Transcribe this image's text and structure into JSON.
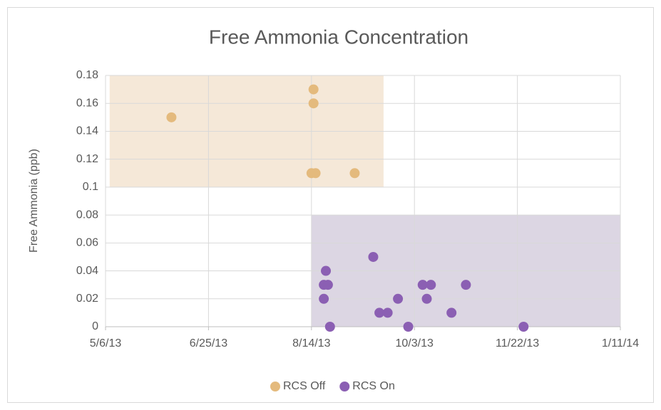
{
  "chart_data": {
    "type": "scatter",
    "title": "Free Ammonia Concentration",
    "y_label": "Free Ammonia (ppb)",
    "xlim": [
      "5/6/13",
      "1/11/14"
    ],
    "xticks": [
      "5/6/13",
      "6/25/13",
      "8/14/13",
      "10/3/13",
      "11/22/13",
      "1/11/14"
    ],
    "ylim": [
      0,
      0.18
    ],
    "yticks": [
      0,
      0.02,
      0.04,
      0.06,
      0.08,
      0.1,
      0.12,
      0.14,
      0.16,
      0.18
    ],
    "grid": true,
    "regions": [
      {
        "x": [
          "5/8/13",
          "9/18/13"
        ],
        "y": [
          0.1,
          0.18
        ],
        "color": "#f5e8d8"
      },
      {
        "x": [
          "8/14/13",
          "1/11/14"
        ],
        "y": [
          0,
          0.08
        ],
        "color": "#dcd6e3"
      }
    ],
    "series": [
      {
        "name": "RCS Off",
        "color": "#e4ba7d",
        "x": [
          "6/7/13",
          "8/15/13",
          "8/15/13",
          "8/14/13",
          "8/16/13",
          "9/4/13"
        ],
        "values": [
          0.15,
          0.17,
          0.16,
          0.11,
          0.11,
          0.11
        ]
      },
      {
        "name": "RCS On",
        "color": "#8b5fb3",
        "x": [
          "8/21/13",
          "8/20/13",
          "8/22/13",
          "8/20/13",
          "8/23/13",
          "9/13/13",
          "9/16/13",
          "9/20/13",
          "9/25/13",
          "9/30/13",
          "10/7/13",
          "10/9/13",
          "10/11/13",
          "10/21/13",
          "10/28/13",
          "11/25/13"
        ],
        "values": [
          0.04,
          0.03,
          0.03,
          0.02,
          0,
          0.05,
          0.01,
          0.01,
          0.02,
          0,
          0.03,
          0.02,
          0.03,
          0.01,
          0.03,
          0
        ]
      }
    ],
    "legend": "bottom"
  }
}
